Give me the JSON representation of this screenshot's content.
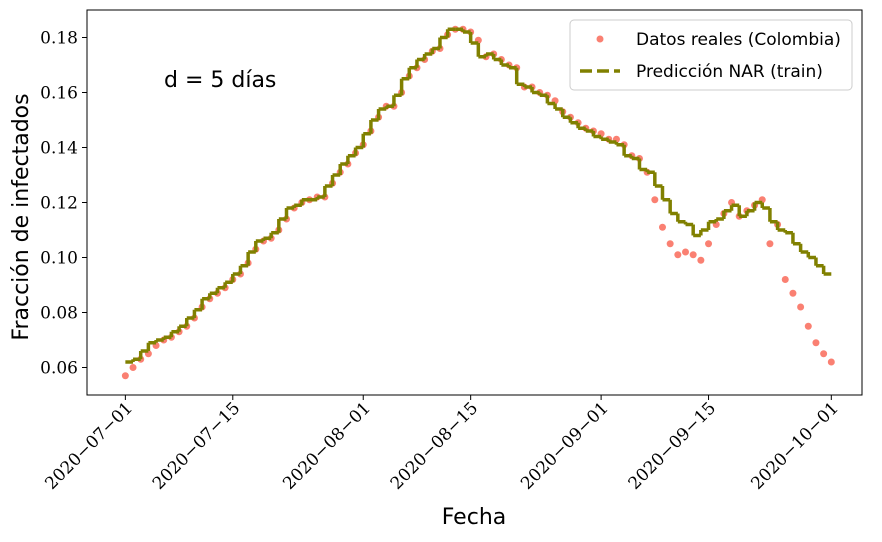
{
  "chart_data": {
    "type": "line",
    "xlabel": "Fecha",
    "ylabel": "Fracción de infectados",
    "annotation": "d = 5 días",
    "x": [
      "2020-07-01",
      "2020-07-02",
      "2020-07-03",
      "2020-07-04",
      "2020-07-05",
      "2020-07-06",
      "2020-07-07",
      "2020-07-08",
      "2020-07-09",
      "2020-07-10",
      "2020-07-11",
      "2020-07-12",
      "2020-07-13",
      "2020-07-14",
      "2020-07-15",
      "2020-07-16",
      "2020-07-17",
      "2020-07-18",
      "2020-07-19",
      "2020-07-20",
      "2020-07-21",
      "2020-07-22",
      "2020-07-23",
      "2020-07-24",
      "2020-07-25",
      "2020-07-26",
      "2020-07-27",
      "2020-07-28",
      "2020-07-29",
      "2020-07-30",
      "2020-07-31",
      "2020-08-01",
      "2020-08-02",
      "2020-08-03",
      "2020-08-04",
      "2020-08-05",
      "2020-08-06",
      "2020-08-07",
      "2020-08-08",
      "2020-08-09",
      "2020-08-10",
      "2020-08-11",
      "2020-08-12",
      "2020-08-13",
      "2020-08-14",
      "2020-08-15",
      "2020-08-16",
      "2020-08-17",
      "2020-08-18",
      "2020-08-19",
      "2020-08-20",
      "2020-08-21",
      "2020-08-22",
      "2020-08-23",
      "2020-08-24",
      "2020-08-25",
      "2020-08-26",
      "2020-08-27",
      "2020-08-28",
      "2020-08-29",
      "2020-08-30",
      "2020-08-31",
      "2020-09-01",
      "2020-09-02",
      "2020-09-03",
      "2020-09-04",
      "2020-09-05",
      "2020-09-06",
      "2020-09-07",
      "2020-09-08",
      "2020-09-09",
      "2020-09-10",
      "2020-09-11",
      "2020-09-12",
      "2020-09-13",
      "2020-09-14",
      "2020-09-15",
      "2020-09-16",
      "2020-09-17",
      "2020-09-18",
      "2020-09-19",
      "2020-09-20",
      "2020-09-21",
      "2020-09-22",
      "2020-09-23",
      "2020-09-24",
      "2020-09-25",
      "2020-09-26",
      "2020-09-27",
      "2020-09-28",
      "2020-09-29",
      "2020-09-30",
      "2020-10-01"
    ],
    "series": [
      {
        "name": "Datos reales (Colombia)",
        "color": "#fa8072",
        "style": "dots",
        "values": [
          0.057,
          0.06,
          0.063,
          0.065,
          0.068,
          0.07,
          0.071,
          0.073,
          0.075,
          0.078,
          0.082,
          0.085,
          0.087,
          0.089,
          0.092,
          0.094,
          0.098,
          0.103,
          0.106,
          0.107,
          0.11,
          0.114,
          0.118,
          0.12,
          0.121,
          0.122,
          0.122,
          0.127,
          0.131,
          0.134,
          0.138,
          0.141,
          0.146,
          0.151,
          0.155,
          0.155,
          0.16,
          0.166,
          0.169,
          0.172,
          0.175,
          0.176,
          0.181,
          0.183,
          0.183,
          0.182,
          0.179,
          0.173,
          0.174,
          0.172,
          0.17,
          0.169,
          0.162,
          0.162,
          0.16,
          0.159,
          0.157,
          0.153,
          0.151,
          0.149,
          0.147,
          0.146,
          0.145,
          0.143,
          0.143,
          0.141,
          0.137,
          0.136,
          0.131,
          0.121,
          0.111,
          0.105,
          0.101,
          0.102,
          0.101,
          0.099,
          0.105,
          0.112,
          0.116,
          0.12,
          0.115,
          0.117,
          0.119,
          0.121,
          0.105,
          0.112,
          0.092,
          0.087,
          0.082,
          0.075,
          0.069,
          0.065,
          0.062
        ]
      },
      {
        "name": "Predicción NAR (train)",
        "color": "#808000",
        "style": "steps-dashed",
        "values": [
          null,
          0.062,
          0.063,
          0.066,
          0.069,
          0.07,
          0.071,
          0.073,
          0.075,
          0.078,
          0.081,
          0.085,
          0.087,
          0.089,
          0.091,
          0.094,
          0.097,
          0.102,
          0.106,
          0.107,
          0.109,
          0.114,
          0.118,
          0.119,
          0.121,
          0.121,
          0.122,
          0.126,
          0.13,
          0.134,
          0.137,
          0.14,
          0.145,
          0.15,
          0.154,
          0.155,
          0.159,
          0.165,
          0.169,
          0.172,
          0.174,
          0.176,
          0.18,
          0.183,
          0.183,
          0.182,
          0.178,
          0.173,
          0.174,
          0.172,
          0.17,
          0.169,
          0.163,
          0.162,
          0.16,
          0.159,
          0.156,
          0.154,
          0.151,
          0.149,
          0.147,
          0.146,
          0.144,
          0.143,
          0.142,
          0.141,
          0.137,
          0.136,
          0.132,
          0.131,
          0.126,
          0.121,
          0.116,
          0.113,
          0.112,
          0.108,
          0.11,
          0.113,
          0.114,
          0.117,
          0.119,
          0.115,
          0.117,
          0.12,
          0.118,
          0.113,
          0.11,
          0.109,
          0.105,
          0.102,
          0.1,
          0.097,
          0.094
        ]
      }
    ],
    "xlim": [
      "2020-06-26",
      "2020-10-05"
    ],
    "xticks": [
      {
        "value": "2020-07-01",
        "label": "2020−07−01"
      },
      {
        "value": "2020-07-15",
        "label": "2020−07−15"
      },
      {
        "value": "2020-08-01",
        "label": "2020−08−01"
      },
      {
        "value": "2020-08-15",
        "label": "2020−08−15"
      },
      {
        "value": "2020-09-01",
        "label": "2020−09−01"
      },
      {
        "value": "2020-09-15",
        "label": "2020−09−15"
      },
      {
        "value": "2020-10-01",
        "label": "2020−10−01"
      }
    ],
    "ylim": [
      0.05,
      0.19
    ],
    "yticks": [
      0.06,
      0.08,
      {
        "value": 0.1,
        "label": "0.10"
      },
      0.12,
      0.14,
      0.16,
      0.18
    ],
    "legend": "upper right"
  }
}
